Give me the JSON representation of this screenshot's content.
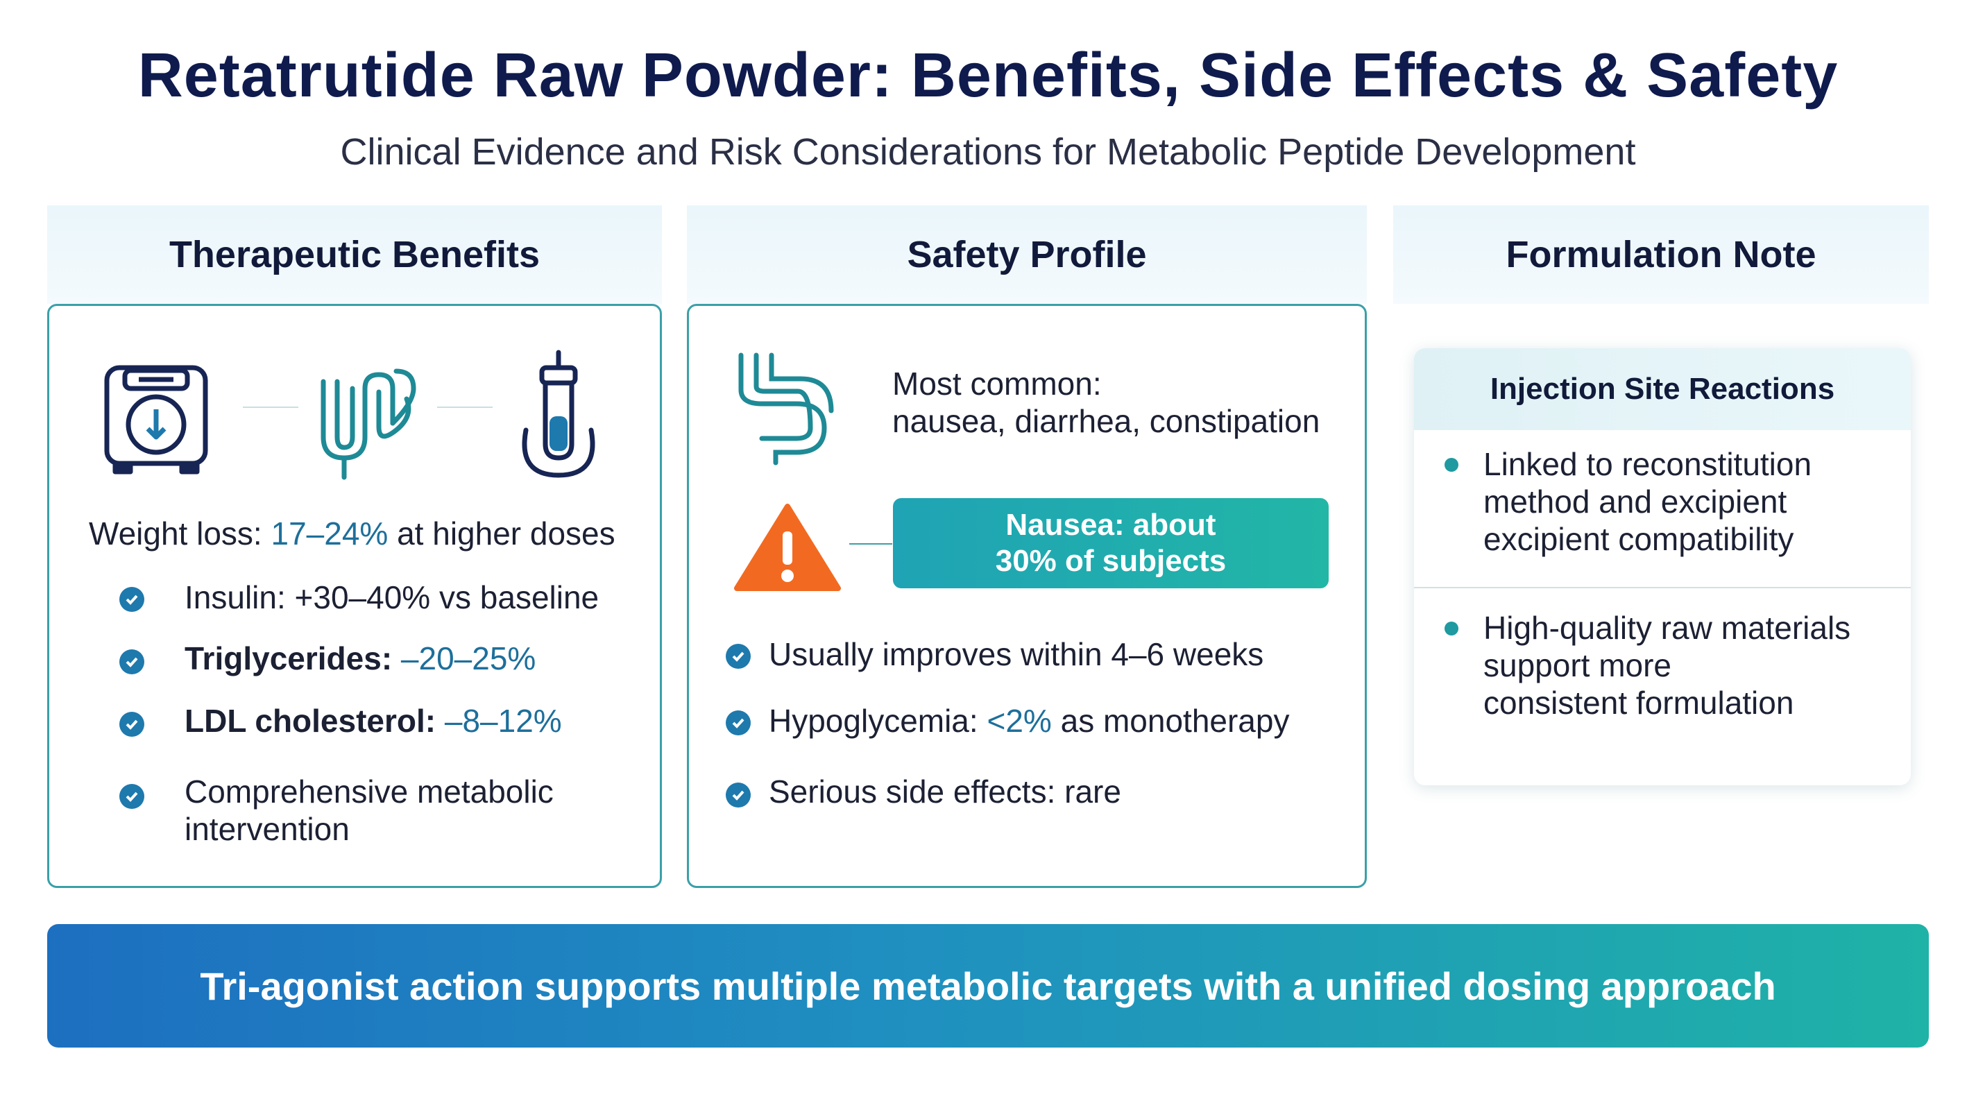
{
  "header": {
    "title": "Retatrutide Raw Powder: Benefits, Side Effects & Safety",
    "subtitle": "Clinical Evidence and Risk Considerations for Metabolic Peptide Development"
  },
  "benefits": {
    "heading": "Therapeutic Benefits",
    "icons": [
      "weight-scale-icon",
      "digestive-system-icon",
      "test-tube-icon"
    ],
    "weight_loss": {
      "label": "Weight loss:",
      "value": "17–24%",
      "suffix": "at higher doses"
    },
    "items": [
      {
        "label": "Insulin:",
        "value": "+30–40% vs baseline"
      },
      {
        "label": "Triglycerides:",
        "value": "–20–25%"
      },
      {
        "label": "LDL cholesterol:",
        "value": "–8–12%"
      },
      {
        "line1": "Comprehensive metabolic",
        "line2": "intervention"
      }
    ]
  },
  "safety": {
    "heading": "Safety Profile",
    "icons": [
      "digestive-tract-icon",
      "warning-icon"
    ],
    "common_label": "Most common:",
    "common_effects": "nausea, diarrhea, constipation",
    "nausea_line1": "Nausea: about",
    "nausea_line2": "30% of subjects",
    "items": [
      {
        "text": "Usually improves within 4–6 weeks"
      },
      {
        "prefix": "Hypoglycemia:",
        "value": "<2%",
        "suffix": "as monotherapy"
      },
      {
        "text": "Serious side effects: rare"
      }
    ]
  },
  "formulation": {
    "heading": "Formulation Note",
    "card_title": "Injection Site Reactions",
    "bullets": [
      {
        "line1": "Linked to reconstitution",
        "line2": "method and excipient",
        "line3": "excipient compatibility"
      },
      {
        "line1": "High-quality raw materials",
        "line2": "support more",
        "line3": "consistent formulation"
      }
    ]
  },
  "banner": {
    "text": "Tri-agonist action supports multiple metabolic targets with a unified dosing approach"
  },
  "colors": {
    "title": "#0f1b4d",
    "accent_teal": "#3aa0a8",
    "check_blue": "#1e79ad",
    "warning_orange": "#f26a21",
    "banner_start": "#1d6fc0",
    "banner_end": "#1fb2a7"
  }
}
